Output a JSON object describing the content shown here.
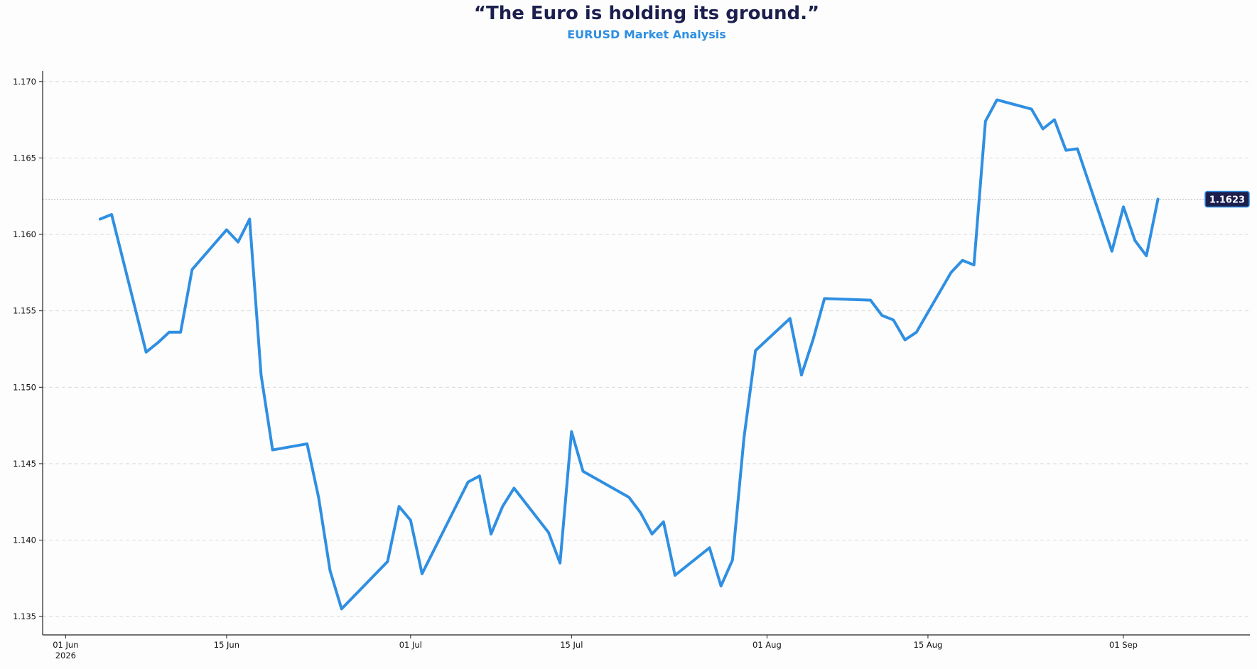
{
  "chart_data": {
    "type": "line",
    "title": "“The Euro is holding its ground.”",
    "subtitle": "EURUSD Market Analysis",
    "xlabel": "",
    "ylabel": "",
    "ylim": [
      1.1338,
      1.1705
    ],
    "xlim": [
      "2026-05-30",
      "2026-09-12"
    ],
    "yticks": [
      "1.135",
      "1.140",
      "1.145",
      "1.150",
      "1.155",
      "1.160",
      "1.165",
      "1.170"
    ],
    "xticks": [
      {
        "date": "2026-06-01",
        "label": "01 Jun",
        "sublabel": "2026"
      },
      {
        "date": "2026-06-15",
        "label": "15 Jun",
        "sublabel": ""
      },
      {
        "date": "2026-07-01",
        "label": "01 Jul",
        "sublabel": ""
      },
      {
        "date": "2026-07-15",
        "label": "15 Jul",
        "sublabel": ""
      },
      {
        "date": "2026-08-01",
        "label": "01 Aug",
        "sublabel": ""
      },
      {
        "date": "2026-08-15",
        "label": "15 Aug",
        "sublabel": ""
      },
      {
        "date": "2026-09-01",
        "label": "01 Sep",
        "sublabel": ""
      }
    ],
    "grid": "horizontal-dashed",
    "last_value_label": "1.1623",
    "colors": {
      "line": "#2f8fe2",
      "title": "#1c1f4e",
      "subtitle": "#2f8fe2",
      "badge": "#1c1f4e",
      "grid": "#d4d4d4"
    },
    "series": [
      {
        "x": [
          "2026-06-04",
          "2026-06-05",
          "2026-06-08",
          "2026-06-09",
          "2026-06-10",
          "2026-06-11",
          "2026-06-12",
          "2026-06-15",
          "2026-06-16",
          "2026-06-17",
          "2026-06-18",
          "2026-06-19",
          "2026-06-22",
          "2026-06-23",
          "2026-06-24",
          "2026-06-25",
          "2026-06-29",
          "2026-06-30",
          "2026-07-01",
          "2026-07-02",
          "2026-07-06",
          "2026-07-07",
          "2026-07-08",
          "2026-07-09",
          "2026-07-10",
          "2026-07-13",
          "2026-07-14",
          "2026-07-15",
          "2026-07-16",
          "2026-07-20",
          "2026-07-21",
          "2026-07-22",
          "2026-07-23",
          "2026-07-24",
          "2026-07-27",
          "2026-07-28",
          "2026-07-29",
          "2026-07-30",
          "2026-07-31",
          "2026-08-03",
          "2026-08-04",
          "2026-08-05",
          "2026-08-06",
          "2026-08-10",
          "2026-08-11",
          "2026-08-12",
          "2026-08-13",
          "2026-08-14",
          "2026-08-17",
          "2026-08-18",
          "2026-08-19",
          "2026-08-20",
          "2026-08-21",
          "2026-08-24",
          "2026-08-25",
          "2026-08-26",
          "2026-08-27",
          "2026-08-28",
          "2026-08-31",
          "2026-09-01",
          "2026-09-02",
          "2026-09-03",
          "2026-09-04"
        ],
        "y": [
          1.161,
          1.1613,
          1.1523,
          1.1529,
          1.1536,
          1.1536,
          1.1577,
          1.1603,
          1.1595,
          1.161,
          1.1508,
          1.1459,
          1.1463,
          1.1428,
          1.138,
          1.1355,
          1.1386,
          1.1422,
          1.1413,
          1.1378,
          1.1438,
          1.1442,
          1.1404,
          1.1422,
          1.1434,
          1.1405,
          1.1385,
          1.1471,
          1.1445,
          1.1428,
          1.1418,
          1.1404,
          1.1412,
          1.1377,
          1.1395,
          1.137,
          1.1387,
          1.1467,
          1.1524,
          1.1545,
          1.1508,
          1.1531,
          1.1558,
          1.1557,
          1.1547,
          1.1544,
          1.1531,
          1.1536,
          1.1575,
          1.1583,
          1.158,
          1.1674,
          1.1688,
          1.1682,
          1.1669,
          1.1675,
          1.1655,
          1.1656,
          1.1589,
          1.1618,
          1.1596,
          1.1586,
          1.1623
        ]
      }
    ]
  }
}
